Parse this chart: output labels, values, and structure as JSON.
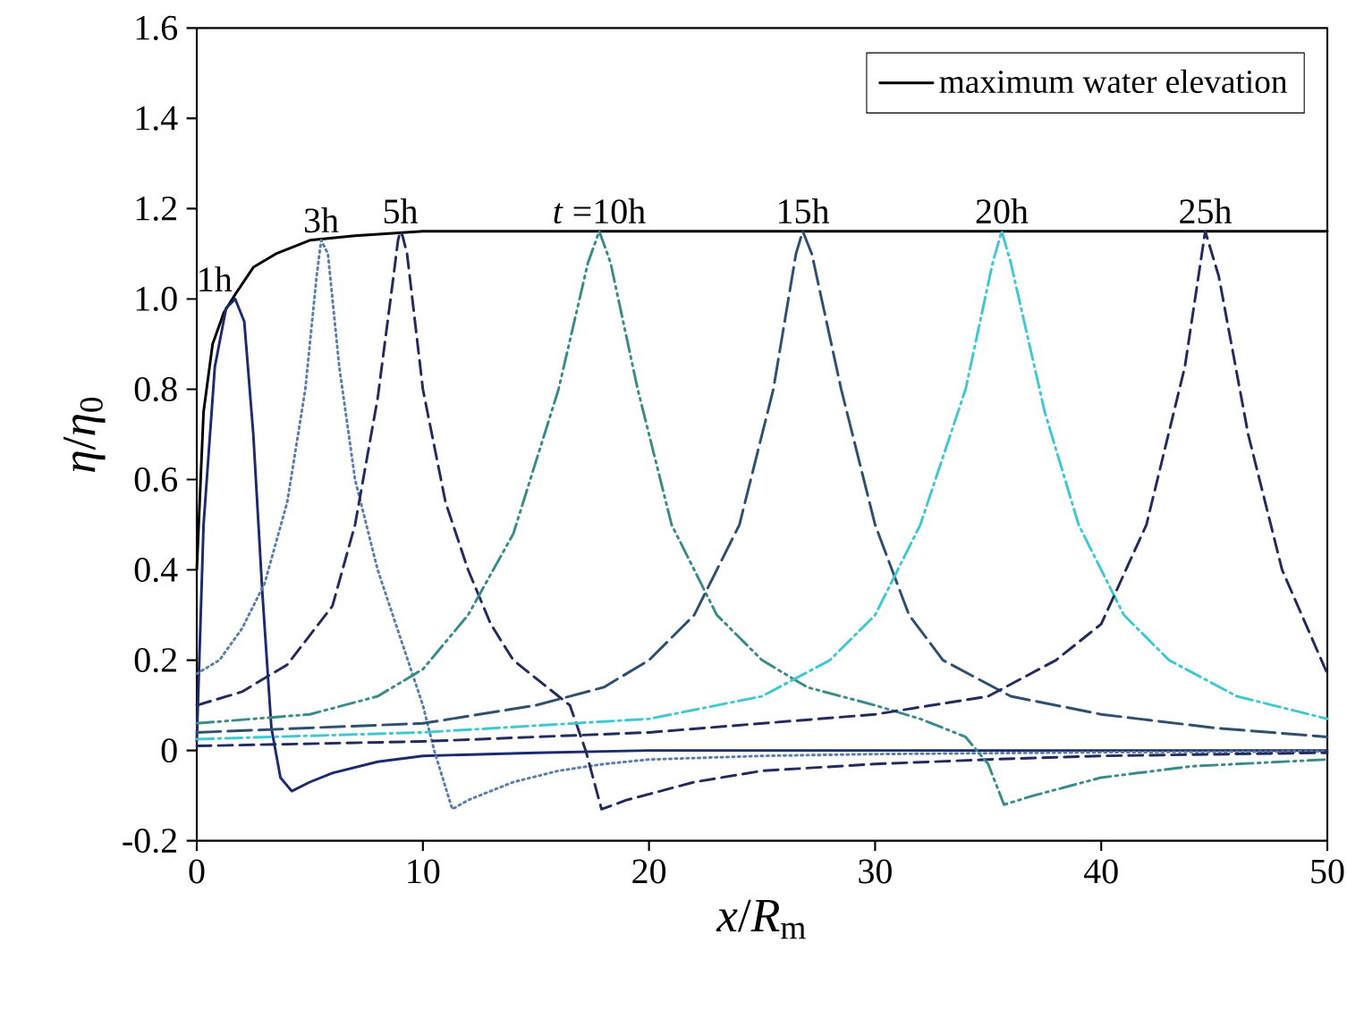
{
  "chart_data": {
    "type": "line",
    "xlabel": "*x*/*R*$_{m}$",
    "ylabel": "*η*/*η*$_{0}$",
    "xlim": [
      0,
      50
    ],
    "xticks": [
      0,
      10,
      20,
      30,
      40,
      50
    ],
    "ylim": [
      -0.2,
      1.6
    ],
    "yticks": [
      -0.2,
      0,
      0.2,
      0.4,
      0.6,
      0.8,
      {
        "value": 1,
        "label": "1.0"
      },
      1.2,
      1.4,
      1.6
    ],
    "grid": false,
    "legend": "top right",
    "series": [
      {
        "name": "maximum water elevation",
        "color": "#000000",
        "line_style": "solid",
        "x": [
          0,
          0.3,
          0.7,
          1.2,
          1.7,
          2.5,
          3.5,
          5,
          7,
          10,
          50
        ],
        "values": [
          0.4,
          0.75,
          0.9,
          0.97,
          1.01,
          1.07,
          1.1,
          1.13,
          1.14,
          1.15,
          1.15
        ]
      },
      {
        "color": "#1c2a6e",
        "line_style": "solid",
        "x": [
          0,
          0.3,
          0.8,
          1.3,
          1.7,
          2.1,
          2.5,
          2.9,
          3.3,
          3.7,
          4.2,
          5,
          6,
          8,
          10,
          15,
          20,
          50
        ],
        "values": [
          0.02,
          0.5,
          0.85,
          0.98,
          1.0,
          0.95,
          0.7,
          0.35,
          0.05,
          -0.06,
          -0.09,
          -0.07,
          -0.05,
          -0.025,
          -0.012,
          -0.005,
          0,
          0
        ]
      },
      {
        "color": "#5a7ea8",
        "line_style": "dotted",
        "x": [
          0,
          1,
          2,
          3,
          4,
          4.8,
          5.3,
          5.5,
          5.8,
          6.3,
          7,
          8,
          9,
          10,
          10.5,
          11.3,
          12,
          14,
          16,
          18,
          20,
          25,
          30,
          40,
          50
        ],
        "values": [
          0.17,
          0.2,
          0.27,
          0.37,
          0.55,
          0.8,
          1.05,
          1.13,
          1.1,
          0.85,
          0.6,
          0.4,
          0.25,
          0.1,
          0,
          -0.13,
          -0.11,
          -0.07,
          -0.045,
          -0.03,
          -0.02,
          -0.012,
          -0.008,
          -0.004,
          -0.002
        ]
      },
      {
        "color": "#232b5c",
        "line_style": "dashed",
        "x": [
          0,
          2,
          4,
          6,
          7,
          8,
          8.7,
          8.9,
          9,
          9.1,
          9.3,
          10,
          11,
          12,
          13,
          14,
          15.5,
          16.5,
          17.2,
          17.9,
          19,
          22,
          25,
          30,
          35,
          40,
          50
        ],
        "values": [
          0.1,
          0.13,
          0.19,
          0.32,
          0.5,
          0.78,
          1.05,
          1.13,
          1.15,
          1.14,
          1.1,
          0.8,
          0.55,
          0.4,
          0.28,
          0.2,
          0.14,
          0.1,
          0,
          -0.13,
          -0.11,
          -0.07,
          -0.045,
          -0.03,
          -0.02,
          -0.012,
          -0.005
        ]
      },
      {
        "color": "#3a8a8a",
        "line_style": "dashdotdotted",
        "x": [
          0,
          5,
          8,
          10,
          12,
          14,
          16,
          17.3,
          17.8,
          18.3,
          19.5,
          21,
          23,
          25,
          27,
          30,
          32,
          34,
          35,
          35.7,
          37,
          40,
          44,
          50
        ],
        "values": [
          0.06,
          0.08,
          0.12,
          0.18,
          0.3,
          0.48,
          0.8,
          1.08,
          1.15,
          1.08,
          0.8,
          0.5,
          0.3,
          0.2,
          0.14,
          0.1,
          0.07,
          0.03,
          -0.03,
          -0.12,
          -0.1,
          -0.06,
          -0.035,
          -0.02
        ]
      },
      {
        "color": "#2f4f6f",
        "line_style": "long dashed",
        "x": [
          0,
          10,
          15,
          18,
          20,
          22,
          24,
          25.5,
          26.5,
          26.8,
          27.2,
          28.5,
          30,
          31.5,
          33,
          36,
          40,
          45,
          50
        ],
        "values": [
          0.04,
          0.06,
          0.1,
          0.14,
          0.2,
          0.3,
          0.5,
          0.8,
          1.1,
          1.15,
          1.1,
          0.8,
          0.5,
          0.3,
          0.2,
          0.12,
          0.08,
          0.05,
          0.03
        ]
      },
      {
        "color": "#40c8d0",
        "line_style": "dashdotted",
        "x": [
          0,
          10,
          20,
          25,
          28,
          30,
          32,
          34,
          35.2,
          35.6,
          36,
          37.5,
          39,
          41,
          43,
          46,
          50
        ],
        "values": [
          0.025,
          0.04,
          0.07,
          0.12,
          0.2,
          0.3,
          0.5,
          0.8,
          1.08,
          1.15,
          1.08,
          0.75,
          0.5,
          0.3,
          0.2,
          0.12,
          0.07
        ]
      },
      {
        "color": "#232b5c",
        "line_style": "dashed",
        "x": [
          0,
          10,
          20,
          30,
          35,
          38,
          40,
          42,
          43.7,
          44.6,
          45.2,
          46.5,
          48,
          50
        ],
        "values": [
          0.01,
          0.02,
          0.04,
          0.08,
          0.12,
          0.2,
          0.28,
          0.5,
          0.85,
          1.15,
          1.05,
          0.7,
          0.4,
          0.17
        ]
      }
    ],
    "annotations": [
      {
        "text": "1h",
        "x": 1.7,
        "y": 1.0
      },
      {
        "text": "3h",
        "x": 5.5,
        "y": 1.13
      },
      {
        "text": "5h",
        "x": 9,
        "y": 1.15
      },
      {
        "text": "*t* =10h",
        "x": 17.8,
        "y": 1.15
      },
      {
        "text": "15h",
        "x": 26.8,
        "y": 1.15
      },
      {
        "text": "20h",
        "x": 35.6,
        "y": 1.15
      },
      {
        "text": "25h",
        "x": 44.6,
        "y": 1.15
      }
    ]
  }
}
